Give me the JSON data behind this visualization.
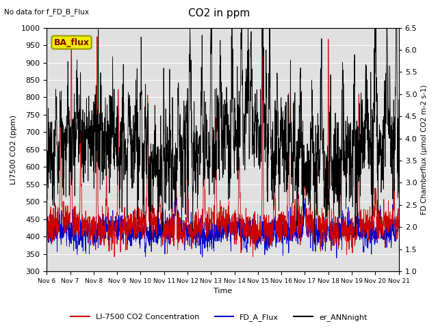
{
  "title": "CO2 in ppm",
  "top_left_text": "No data for f_FD_B_Flux",
  "box_label": "BA_flux",
  "ylabel_left": "LI7500 CO2 (ppm)",
  "ylabel_right": "FD Chamberflux (μmol CO2 m-2 s-1)",
  "xlabel": "Time",
  "ylim_left": [
    300,
    1000
  ],
  "ylim_right": [
    1.0,
    6.5
  ],
  "yticks_left": [
    300,
    350,
    400,
    450,
    500,
    550,
    600,
    650,
    700,
    750,
    800,
    850,
    900,
    950,
    1000
  ],
  "yticks_right": [
    1.0,
    1.5,
    2.0,
    2.5,
    3.0,
    3.5,
    4.0,
    4.5,
    5.0,
    5.5,
    6.0,
    6.5
  ],
  "xtick_labels": [
    "Nov 6",
    "Nov 7",
    "Nov 8",
    "Nov 9",
    "Nov 10",
    "Nov 11",
    "Nov 12",
    "Nov 13",
    "Nov 14",
    "Nov 15",
    "Nov 16",
    "Nov 17",
    "Nov 18",
    "Nov 19",
    "Nov 20",
    "Nov 21"
  ],
  "color_red": "#cc0000",
  "color_blue": "#0000cc",
  "color_black": "#000000",
  "legend_labels": [
    "LI-7500 CO2 Concentration",
    "FD_A_Flux",
    "er_ANNnight"
  ],
  "bg_color": "#e0e0e0",
  "n_points": 2000,
  "linewidth": 0.6
}
